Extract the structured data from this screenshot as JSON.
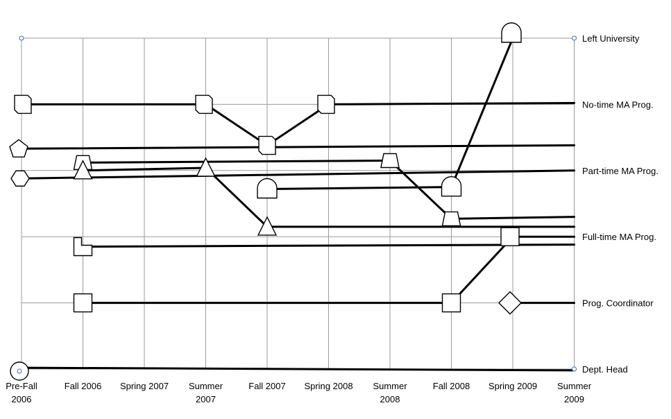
{
  "chart_data": {
    "type": "diagram",
    "x_ticks": [
      {
        "lines": [
          "Pre-Fall",
          "2006"
        ]
      },
      {
        "lines": [
          "Fall 2006"
        ]
      },
      {
        "lines": [
          "Spring 2007"
        ]
      },
      {
        "lines": [
          "Summer",
          "2007"
        ]
      },
      {
        "lines": [
          "Fall 2007"
        ]
      },
      {
        "lines": [
          "Spring 2008"
        ]
      },
      {
        "lines": [
          "Summer",
          "2008"
        ]
      },
      {
        "lines": [
          "Fall 2008"
        ]
      },
      {
        "lines": [
          "Spring 2009"
        ]
      },
      {
        "lines": [
          "Summer",
          "2009"
        ]
      }
    ],
    "y_levels": [
      "Dept. Head",
      "Prog. Coordinator",
      "Full-time MA Prog.",
      "Part-time MA Prog.",
      "No-time MA Prog.",
      "Left University"
    ],
    "people": [
      {
        "marker": "circle",
        "path": [
          [
            0,
            0.02
          ],
          [
            9,
            -0.02
          ]
        ]
      },
      {
        "marker": "square",
        "path": [
          [
            1,
            1.0
          ],
          [
            7,
            1.0
          ],
          [
            8,
            2.0
          ],
          [
            9,
            2.0
          ]
        ]
      },
      {
        "marker": "L-shape",
        "path": [
          [
            1,
            1.85
          ],
          [
            9,
            1.88
          ]
        ]
      },
      {
        "marker": "diamond",
        "path": [
          [
            8,
            1.0
          ],
          [
            9,
            1.0
          ]
        ]
      },
      {
        "marker": "trapezoid",
        "path": [
          [
            1,
            3.12
          ],
          [
            6,
            3.15
          ],
          [
            7,
            2.27
          ],
          [
            9,
            2.3
          ]
        ]
      },
      {
        "marker": "triangle",
        "path": [
          [
            1,
            3.0
          ],
          [
            3,
            3.04
          ],
          [
            4,
            2.15
          ],
          [
            9,
            2.15
          ]
        ]
      },
      {
        "marker": "hexagon",
        "path": [
          [
            0,
            2.88
          ],
          [
            9,
            3.0
          ]
        ]
      },
      {
        "marker": "pentagon",
        "path": [
          [
            0,
            3.33
          ],
          [
            9,
            3.38
          ]
        ]
      },
      {
        "marker": "half-circle",
        "path": [
          [
            4,
            2.72
          ],
          [
            7,
            2.75
          ],
          [
            8,
            5.0
          ]
        ]
      },
      {
        "marker": "folded-square",
        "path": [
          [
            0,
            4.0
          ],
          [
            3,
            4.0
          ],
          [
            4,
            3.38
          ],
          [
            5,
            4.0
          ],
          [
            9,
            4.02
          ]
        ]
      }
    ]
  }
}
